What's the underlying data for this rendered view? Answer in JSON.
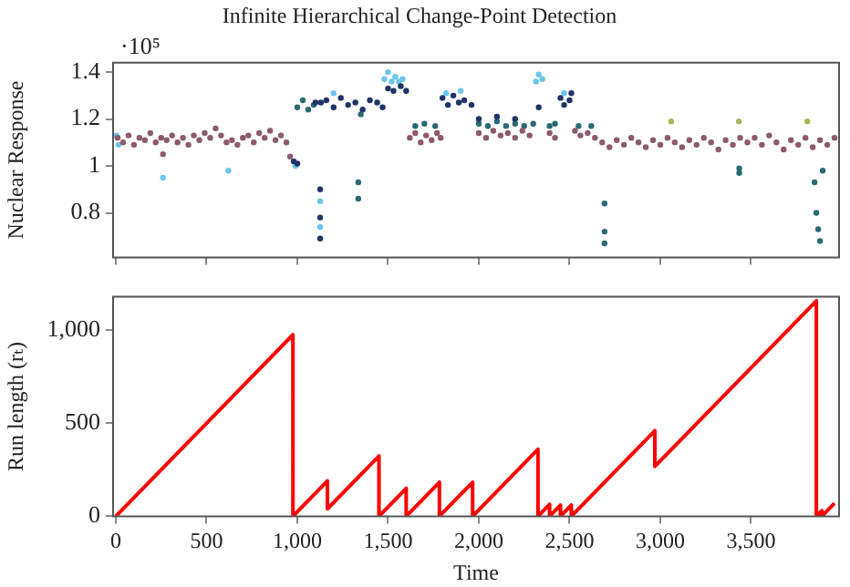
{
  "chart_data": [
    {
      "type": "scatter",
      "title": "Infinite Hierarchical Change-Point Detection",
      "ylabel": "Nuclear Response",
      "annotations": [
        "·10⁵"
      ],
      "xlim": [
        -15,
        3985
      ],
      "xticks": [
        {
          "value": 0,
          "label": null
        },
        {
          "value": 500,
          "label": null
        },
        {
          "value": 1000,
          "label": null
        },
        {
          "value": 1500,
          "label": null
        },
        {
          "value": 2000,
          "label": null
        },
        {
          "value": 2500,
          "label": null
        },
        {
          "value": 3000,
          "label": null
        },
        {
          "value": 3500,
          "label": null
        }
      ],
      "ylim": [
        0.61,
        1.44
      ],
      "yticks": [
        0.8,
        1,
        1.2,
        1.4
      ],
      "tick_labels": "y",
      "grid": false,
      "legend": false,
      "marker": "circle",
      "series": [
        {
          "color": "#8c5a6c",
          "x": [
            10,
            40,
            70,
            100,
            130,
            160,
            190,
            220,
            250,
            260,
            280,
            310,
            340,
            370,
            400,
            430,
            460,
            490,
            520,
            550,
            580,
            610,
            640,
            670,
            700,
            730,
            760,
            790,
            820,
            850,
            880,
            910,
            940,
            960,
            1620,
            1650,
            1680,
            1710,
            1740,
            1770,
            1790,
            2000,
            2040,
            2080,
            2120,
            2160,
            2200,
            2240,
            2280,
            2390,
            2420,
            2530,
            2560,
            2600,
            2640,
            2680,
            2720,
            2760,
            2800,
            2840,
            2880,
            2920,
            2960,
            3000,
            3040,
            3080,
            3120,
            3160,
            3200,
            3240,
            3280,
            3320,
            3360,
            3400,
            3440,
            3480,
            3520,
            3560,
            3600,
            3640,
            3680,
            3720,
            3760,
            3800,
            3840,
            3880,
            3920,
            3960
          ],
          "values": [
            1.12,
            1.1,
            1.13,
            1.09,
            1.12,
            1.11,
            1.14,
            1.1,
            1.12,
            1.05,
            1.11,
            1.13,
            1.1,
            1.12,
            1.09,
            1.13,
            1.11,
            1.14,
            1.12,
            1.16,
            1.13,
            1.1,
            1.11,
            1.09,
            1.12,
            1.13,
            1.1,
            1.14,
            1.12,
            1.15,
            1.11,
            1.13,
            1.1,
            1.04,
            1.12,
            1.14,
            1.1,
            1.13,
            1.11,
            1.14,
            1.12,
            1.14,
            1.12,
            1.15,
            1.13,
            1.14,
            1.12,
            1.15,
            1.13,
            1.14,
            1.12,
            1.15,
            1.13,
            1.14,
            1.12,
            1.1,
            1.08,
            1.11,
            1.09,
            1.12,
            1.1,
            1.08,
            1.11,
            1.09,
            1.12,
            1.1,
            1.08,
            1.11,
            1.09,
            1.12,
            1.1,
            1.07,
            1.11,
            1.09,
            1.12,
            1.1,
            1.12,
            1.09,
            1.13,
            1.1,
            1.07,
            1.11,
            1.09,
            1.12,
            1.08,
            1.11,
            1.09,
            1.12
          ]
        },
        {
          "color": "#1f3466",
          "x": [
            980,
            1000,
            1100,
            1130,
            1126,
            1126,
            1126,
            1160,
            1200,
            1240,
            1280,
            1320,
            1360,
            1400,
            1440,
            1470,
            1500,
            1530,
            1570,
            1600,
            1800,
            1830,
            1860,
            1890,
            1920,
            1960,
            2000,
            2100,
            2200,
            2330,
            2450,
            2470,
            2500,
            2510
          ],
          "values": [
            1.02,
            1.01,
            1.27,
            1.27,
            0.69,
            0.78,
            0.9,
            1.28,
            1.25,
            1.29,
            1.26,
            1.27,
            1.24,
            1.28,
            1.27,
            1.25,
            1.33,
            1.32,
            1.34,
            1.32,
            1.29,
            1.26,
            1.3,
            1.27,
            1.28,
            1.26,
            1.2,
            1.21,
            1.2,
            1.25,
            1.29,
            1.26,
            1.28,
            1.31
          ]
        },
        {
          "color": "#2b6a75",
          "x": [
            1000,
            1030,
            1060,
            1090,
            1336,
            1336,
            1350,
            1650,
            1700,
            1760,
            2000,
            2050,
            2100,
            2150,
            2200,
            2250,
            2300,
            2390,
            2420,
            2550,
            2620,
            2693,
            2693,
            2693,
            3435,
            3435,
            3850,
            3860,
            3870,
            3880,
            3895
          ],
          "values": [
            1.25,
            1.28,
            1.24,
            1.26,
            0.86,
            0.93,
            1.22,
            1.17,
            1.18,
            1.17,
            1.18,
            1.17,
            1.19,
            1.17,
            1.18,
            1.17,
            1.18,
            1.17,
            1.18,
            1.17,
            1.17,
            0.67,
            0.72,
            0.84,
            0.97,
            0.99,
            0.93,
            0.8,
            0.73,
            0.68,
            0.98
          ]
        },
        {
          "color": "#6cc5ee",
          "x": [
            5,
            15,
            260,
            620,
            990,
            1126,
            1126,
            1200,
            1480,
            1500,
            1520,
            1540,
            1560,
            1580,
            1820,
            1900,
            2315,
            2330,
            2350,
            2470
          ],
          "values": [
            1.13,
            1.09,
            0.95,
            0.98,
            1.0,
            0.74,
            0.85,
            1.31,
            1.37,
            1.4,
            1.36,
            1.38,
            1.36,
            1.37,
            1.31,
            1.32,
            1.36,
            1.39,
            1.37,
            1.31
          ]
        },
        {
          "color": "#a3b857",
          "x": [
            3060,
            3433,
            3810
          ],
          "values": [
            1.19,
            1.19,
            1.19
          ]
        }
      ]
    },
    {
      "type": "line",
      "xlabel": "Time",
      "ylabel": "Run length (rₜ)",
      "xlim": [
        -15,
        3985
      ],
      "xticks": [
        0,
        500,
        {
          "value": 1000,
          "label": "1,000"
        },
        {
          "value": 1500,
          "label": "1,500"
        },
        {
          "value": 2000,
          "label": "2,000"
        },
        {
          "value": 2500,
          "label": "2,500"
        },
        {
          "value": 3000,
          "label": "3,000"
        },
        {
          "value": 3500,
          "label": "3,500"
        }
      ],
      "ylim": [
        0,
        1180
      ],
      "yticks": [
        0,
        500,
        {
          "value": 1000,
          "label": "1,000"
        }
      ],
      "grid": false,
      "legend": false,
      "marker": "none",
      "line_style": "solid",
      "series": [
        {
          "color": "#ff0000",
          "x": [
            0,
            976,
            976,
            1166,
            1166,
            1450,
            1450,
            1600,
            1600,
            1783,
            1783,
            1966,
            1966,
            2326,
            2326,
            2390,
            2390,
            2450,
            2450,
            2510,
            2510,
            2970,
            2970,
            3860,
            3860,
            3890,
            3890,
            3960
          ],
          "values": [
            0,
            976,
            0,
            190,
            40,
            324,
            0,
            150,
            0,
            183,
            0,
            183,
            0,
            360,
            0,
            64,
            0,
            60,
            0,
            60,
            0,
            460,
            268,
            1158,
            0,
            30,
            0,
            70
          ]
        }
      ]
    }
  ]
}
